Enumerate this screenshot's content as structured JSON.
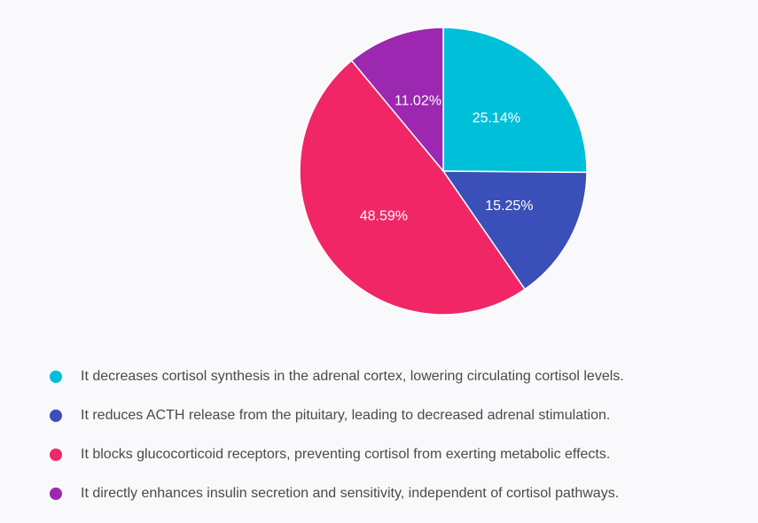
{
  "chart_data": {
    "type": "pie",
    "slices": [
      {
        "label": "It decreases cortisol synthesis in the adrenal cortex, lowering circulating cortisol levels.",
        "value": 25.14,
        "display": "25.14%",
        "color": "#00c0d9"
      },
      {
        "label": "It reduces ACTH release from the pituitary, leading to decreased adrenal stimulation.",
        "value": 15.25,
        "display": "15.25%",
        "color": "#3a4fb8"
      },
      {
        "label": "It blocks glucocorticoid receptors, preventing cortisol from exerting metabolic effects.",
        "value": 48.59,
        "display": "48.59%",
        "color": "#f02667"
      },
      {
        "label": "It directly enhances insulin secretion and sensitivity, independent of cortisol pathways.",
        "value": 11.02,
        "display": "11.02%",
        "color": "#9c27b0"
      }
    ],
    "legend_position": "bottom"
  }
}
